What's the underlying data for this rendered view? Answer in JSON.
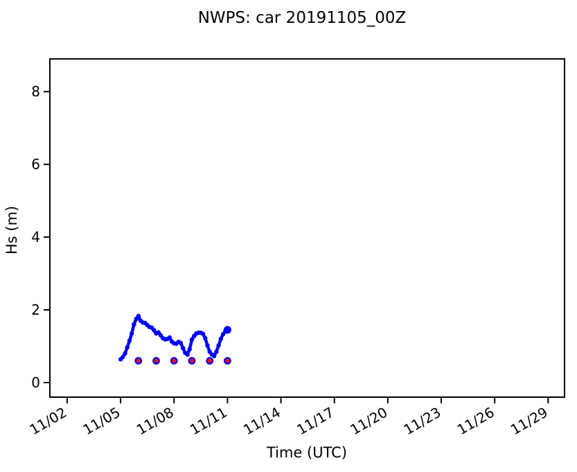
{
  "chart_data": {
    "type": "line",
    "title": "NWPS: car 20191105_00Z",
    "xlabel": "Time (UTC)",
    "ylabel": "Hs (m)",
    "grid": false,
    "legend": "none",
    "colors": {
      "line": "#0000ff",
      "marker_fill": "#ff0000",
      "marker_edge": "#0000ff",
      "axis": "#000000"
    },
    "x_axis": {
      "label": "Time (UTC)",
      "tick_labels": [
        "11/02",
        "11/05",
        "11/08",
        "11/11",
        "11/14",
        "11/17",
        "11/20",
        "11/23",
        "11/26",
        "11/29"
      ],
      "tick_days": [
        0,
        3,
        6,
        9,
        12,
        15,
        18,
        21,
        24,
        27
      ],
      "tick_rotation_deg": 30,
      "xlim_days": [
        -0.97,
        27.92
      ]
    },
    "y_axis": {
      "label": "Hs (m)",
      "ticks": [
        0,
        2,
        4,
        6,
        8
      ],
      "ylim": [
        -0.4,
        8.9
      ]
    },
    "series": [
      {
        "name": "hs-forecast-line",
        "style": "line-with-dot-markers",
        "color": "#0000ff",
        "end_marker_large": true,
        "x_days": [
          3,
          3.125,
          3.25,
          3.375,
          3.5,
          3.625,
          3.75,
          3.875,
          4,
          4.125,
          4.25,
          4.375,
          4.5,
          4.625,
          4.75,
          4.875,
          5,
          5.125,
          5.25,
          5.375,
          5.5,
          5.625,
          5.75,
          5.875,
          6,
          6.125,
          6.25,
          6.375,
          6.5,
          6.625,
          6.75,
          6.875,
          7,
          7.125,
          7.25,
          7.375,
          7.5,
          7.625,
          7.75,
          7.875,
          8,
          8.125,
          8.25,
          8.375,
          8.5,
          8.625,
          8.75,
          8.875,
          9
        ],
        "values": [
          0.64,
          0.7,
          0.8,
          0.97,
          1.15,
          1.35,
          1.6,
          1.75,
          1.83,
          1.7,
          1.65,
          1.64,
          1.58,
          1.53,
          1.51,
          1.44,
          1.35,
          1.38,
          1.3,
          1.22,
          1.19,
          1.2,
          1.24,
          1.13,
          1.08,
          1.07,
          1.12,
          1.09,
          0.95,
          0.82,
          0.77,
          0.92,
          1.18,
          1.28,
          1.35,
          1.37,
          1.37,
          1.34,
          1.22,
          1.02,
          0.85,
          0.77,
          0.73,
          0.85,
          1.02,
          1.2,
          1.33,
          1.4,
          1.45
        ]
      },
      {
        "name": "daily-red-dots",
        "style": "dots-only",
        "color": "#ff0000",
        "edge_color": "#0000ff",
        "x_days": [
          4,
          5,
          6,
          7,
          8,
          9
        ],
        "values": [
          0.6,
          0.6,
          0.6,
          0.6,
          0.6,
          0.6
        ]
      }
    ]
  }
}
